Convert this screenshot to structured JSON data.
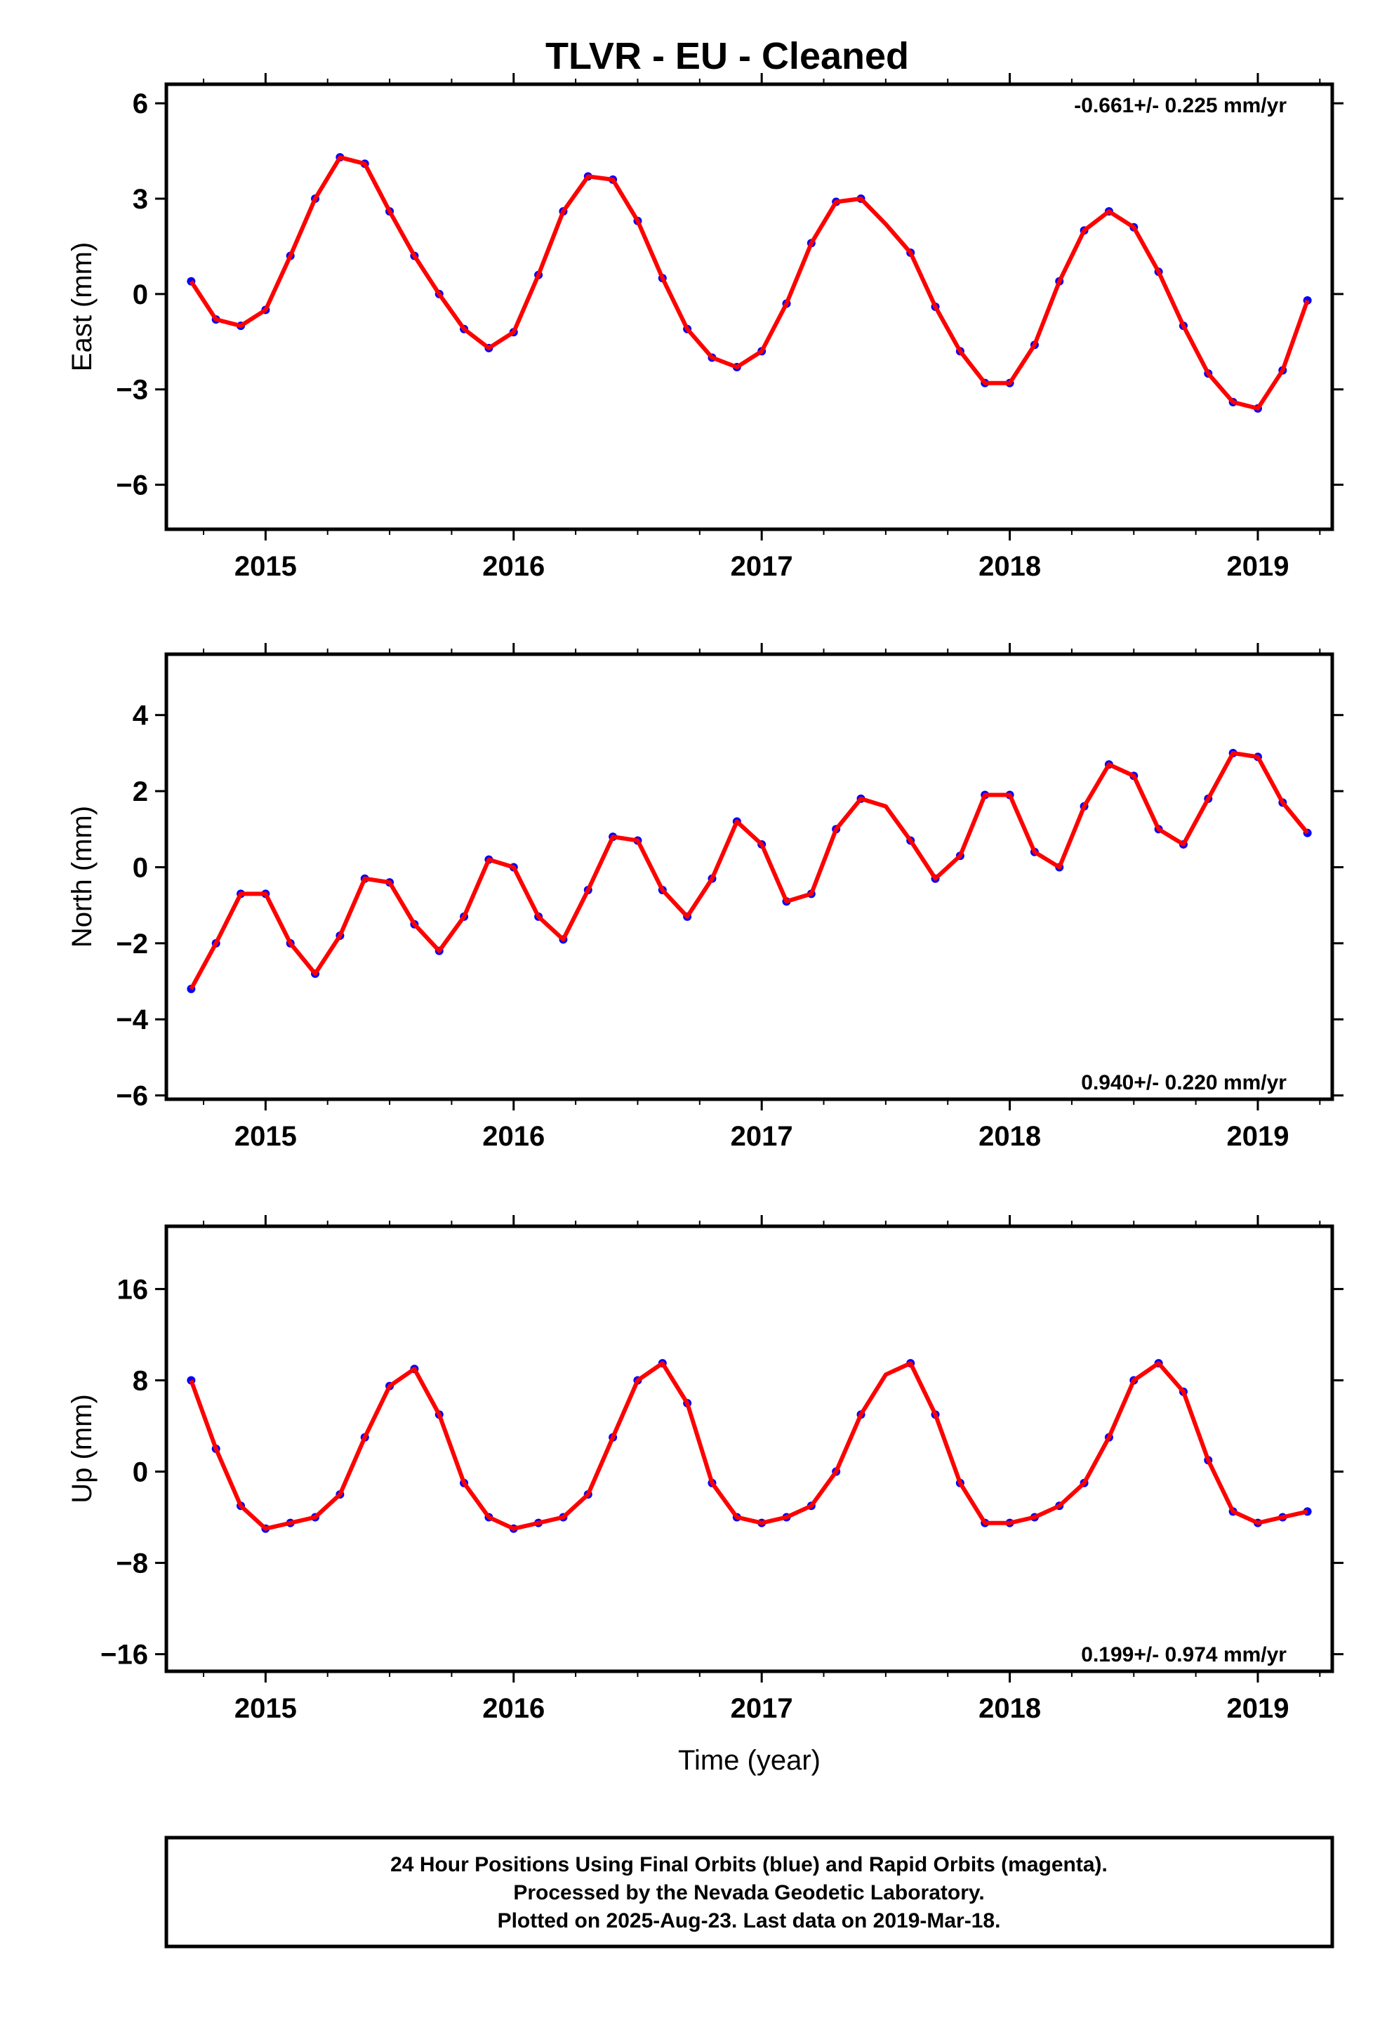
{
  "title": "TLVR  - EU - Cleaned",
  "colors": {
    "final_orbits": "#0000ff",
    "fit": "#ff0000",
    "frame": "#000000"
  },
  "footer": {
    "line1": "24 Hour Positions Using Final Orbits (blue) and Rapid Orbits (magenta).",
    "line2": "Processed by the Nevada Geodetic Laboratory.",
    "line3": "Plotted on 2025-Aug-23. Last data on 2019-Mar-18."
  },
  "chart_data": [
    {
      "type": "scatter",
      "component": "east",
      "ylabel": "East (mm)",
      "xlabel": "",
      "xlim": [
        2014.6,
        2019.3
      ],
      "ylim": [
        -7.4,
        6.6
      ],
      "xticks": [
        2015,
        2016,
        2017,
        2018,
        2019
      ],
      "yticks": [
        6,
        3,
        0,
        -3,
        -6
      ],
      "ytick_labels": [
        "6",
        "3",
        "0",
        "−3",
        "−6"
      ],
      "rate_text": "-0.661+/- 0.225 mm/yr",
      "rate_position": "top-right",
      "series": [
        {
          "style": "points",
          "color": "#0000ff",
          "x": [
            2014.7,
            2014.8,
            2014.9,
            2015.0,
            2015.1,
            2015.2,
            2015.3,
            2015.4,
            2015.5,
            2015.6,
            2015.7,
            2015.8,
            2015.9,
            2016.0,
            2016.1,
            2016.2,
            2016.3,
            2016.4,
            2016.5,
            2016.6,
            2016.7,
            2016.8,
            2016.9,
            2017.0,
            2017.1,
            2017.2,
            2017.3,
            2017.4,
            2017.6,
            2017.7,
            2017.8,
            2017.9,
            2018.0,
            2018.1,
            2018.2,
            2018.3,
            2018.4,
            2018.5,
            2018.6,
            2018.7,
            2018.8,
            2018.9,
            2019.0,
            2019.1,
            2019.2
          ],
          "y": [
            0.4,
            -0.8,
            -1.0,
            -0.5,
            1.2,
            3.0,
            4.3,
            4.1,
            2.6,
            1.2,
            0.0,
            -1.1,
            -1.7,
            -1.2,
            0.6,
            2.6,
            3.7,
            3.6,
            2.3,
            0.5,
            -1.1,
            -2.0,
            -2.3,
            -1.8,
            -0.3,
            1.6,
            2.9,
            3.0,
            1.3,
            -0.4,
            -1.8,
            -2.8,
            -2.8,
            -1.6,
            0.4,
            2.0,
            2.6,
            2.1,
            0.7,
            -1.0,
            -2.5,
            -3.4,
            -3.6,
            -2.4,
            -0.2
          ]
        },
        {
          "style": "line",
          "color": "#ff0000",
          "x": [
            2014.7,
            2014.8,
            2014.9,
            2015.0,
            2015.1,
            2015.2,
            2015.3,
            2015.4,
            2015.5,
            2015.6,
            2015.7,
            2015.8,
            2015.9,
            2016.0,
            2016.1,
            2016.2,
            2016.3,
            2016.4,
            2016.5,
            2016.6,
            2016.7,
            2016.8,
            2016.9,
            2017.0,
            2017.1,
            2017.2,
            2017.3,
            2017.4,
            2017.5,
            2017.6,
            2017.7,
            2017.8,
            2017.9,
            2018.0,
            2018.1,
            2018.2,
            2018.3,
            2018.4,
            2018.5,
            2018.6,
            2018.7,
            2018.8,
            2018.9,
            2019.0,
            2019.1,
            2019.2
          ],
          "y": [
            0.4,
            -0.8,
            -1.0,
            -0.5,
            1.2,
            3.0,
            4.3,
            4.1,
            2.6,
            1.2,
            0.0,
            -1.1,
            -1.7,
            -1.2,
            0.6,
            2.6,
            3.7,
            3.6,
            2.3,
            0.5,
            -1.1,
            -2.0,
            -2.3,
            -1.8,
            -0.3,
            1.6,
            2.9,
            3.0,
            2.2,
            1.3,
            -0.4,
            -1.8,
            -2.8,
            -2.8,
            -1.6,
            0.4,
            2.0,
            2.6,
            2.1,
            0.7,
            -1.0,
            -2.5,
            -3.4,
            -3.6,
            -2.4,
            -0.2
          ]
        }
      ]
    },
    {
      "type": "scatter",
      "component": "north",
      "ylabel": "North (mm)",
      "xlabel": "",
      "xlim": [
        2014.6,
        2019.3
      ],
      "ylim": [
        -6.1,
        5.6
      ],
      "xticks": [
        2015,
        2016,
        2017,
        2018,
        2019
      ],
      "yticks": [
        4,
        2,
        0,
        -2,
        -4,
        -6
      ],
      "ytick_labels": [
        "4",
        "2",
        "0",
        "−2",
        "−4",
        "−6"
      ],
      "rate_text": "0.940+/- 0.220 mm/yr",
      "rate_position": "bottom-right",
      "series": [
        {
          "style": "points",
          "color": "#0000ff",
          "x": [
            2014.7,
            2014.8,
            2014.9,
            2015.0,
            2015.1,
            2015.2,
            2015.3,
            2015.4,
            2015.5,
            2015.6,
            2015.7,
            2015.8,
            2015.9,
            2016.0,
            2016.1,
            2016.2,
            2016.3,
            2016.4,
            2016.5,
            2016.6,
            2016.7,
            2016.8,
            2016.9,
            2017.0,
            2017.1,
            2017.2,
            2017.3,
            2017.4,
            2017.6,
            2017.7,
            2017.8,
            2017.9,
            2018.0,
            2018.1,
            2018.2,
            2018.3,
            2018.4,
            2018.5,
            2018.6,
            2018.7,
            2018.8,
            2018.9,
            2019.0,
            2019.1,
            2019.2
          ],
          "y": [
            -3.2,
            -2.0,
            -0.7,
            -0.7,
            -2.0,
            -2.8,
            -1.8,
            -0.3,
            -0.4,
            -1.5,
            -2.2,
            -1.3,
            0.2,
            0.0,
            -1.3,
            -1.9,
            -0.6,
            0.8,
            0.7,
            -0.6,
            -1.3,
            -0.3,
            1.2,
            0.6,
            -0.9,
            -0.7,
            1.0,
            1.8,
            0.7,
            -0.3,
            0.3,
            1.9,
            1.9,
            0.4,
            0.0,
            1.6,
            2.7,
            2.4,
            1.0,
            0.6,
            1.8,
            3.0,
            2.9,
            1.7,
            0.9
          ]
        },
        {
          "style": "line",
          "color": "#ff0000",
          "x": [
            2014.7,
            2014.8,
            2014.9,
            2015.0,
            2015.1,
            2015.2,
            2015.3,
            2015.4,
            2015.5,
            2015.6,
            2015.7,
            2015.8,
            2015.9,
            2016.0,
            2016.1,
            2016.2,
            2016.3,
            2016.4,
            2016.5,
            2016.6,
            2016.7,
            2016.8,
            2016.9,
            2017.0,
            2017.1,
            2017.2,
            2017.3,
            2017.4,
            2017.5,
            2017.6,
            2017.7,
            2017.8,
            2017.9,
            2018.0,
            2018.1,
            2018.2,
            2018.3,
            2018.4,
            2018.5,
            2018.6,
            2018.7,
            2018.8,
            2018.9,
            2019.0,
            2019.1,
            2019.2
          ],
          "y": [
            -3.2,
            -2.0,
            -0.7,
            -0.7,
            -2.0,
            -2.8,
            -1.8,
            -0.3,
            -0.4,
            -1.5,
            -2.2,
            -1.3,
            0.2,
            0.0,
            -1.3,
            -1.9,
            -0.6,
            0.8,
            0.7,
            -0.6,
            -1.3,
            -0.3,
            1.2,
            0.6,
            -0.9,
            -0.7,
            1.0,
            1.8,
            1.6,
            0.7,
            -0.3,
            0.3,
            1.9,
            1.9,
            0.4,
            0.0,
            1.6,
            2.7,
            2.4,
            1.0,
            0.6,
            1.8,
            3.0,
            2.9,
            1.7,
            0.9
          ]
        }
      ]
    },
    {
      "type": "scatter",
      "component": "up",
      "ylabel": "Up (mm)",
      "xlabel": "Time (year)",
      "xlim": [
        2014.6,
        2019.3
      ],
      "ylim": [
        -17.5,
        21.5
      ],
      "xticks": [
        2015,
        2016,
        2017,
        2018,
        2019
      ],
      "yticks": [
        16,
        8,
        0,
        -8,
        -16
      ],
      "ytick_labels": [
        "16",
        "8",
        "0",
        "−8",
        "−16"
      ],
      "rate_text": "0.199+/- 0.974 mm/yr",
      "rate_position": "bottom-right",
      "series": [
        {
          "style": "points",
          "color": "#0000ff",
          "x": [
            2014.7,
            2014.8,
            2014.9,
            2015.0,
            2015.1,
            2015.2,
            2015.3,
            2015.4,
            2015.5,
            2015.6,
            2015.7,
            2015.8,
            2015.9,
            2016.0,
            2016.1,
            2016.2,
            2016.3,
            2016.4,
            2016.5,
            2016.6,
            2016.7,
            2016.8,
            2016.9,
            2017.0,
            2017.1,
            2017.2,
            2017.3,
            2017.4,
            2017.6,
            2017.7,
            2017.8,
            2017.9,
            2018.0,
            2018.1,
            2018.2,
            2018.3,
            2018.4,
            2018.5,
            2018.6,
            2018.7,
            2018.8,
            2018.9,
            2019.0,
            2019.1,
            2019.2
          ],
          "y": [
            8.0,
            2.0,
            -3.0,
            -5.0,
            -4.5,
            -4.0,
            -2.0,
            3.0,
            7.5,
            9.0,
            5.0,
            -1.0,
            -4.0,
            -5.0,
            -4.5,
            -4.0,
            -2.0,
            3.0,
            8.0,
            9.5,
            6.0,
            -1.0,
            -4.0,
            -4.5,
            -4.0,
            -3.0,
            0.0,
            5.0,
            9.5,
            5.0,
            -1.0,
            -4.5,
            -4.5,
            -4.0,
            -3.0,
            -1.0,
            3.0,
            8.0,
            9.5,
            7.0,
            1.0,
            -3.5,
            -4.5,
            -4.0,
            -3.5
          ]
        },
        {
          "style": "line",
          "color": "#ff0000",
          "x": [
            2014.7,
            2014.8,
            2014.9,
            2015.0,
            2015.1,
            2015.2,
            2015.3,
            2015.4,
            2015.5,
            2015.6,
            2015.7,
            2015.8,
            2015.9,
            2016.0,
            2016.1,
            2016.2,
            2016.3,
            2016.4,
            2016.5,
            2016.6,
            2016.7,
            2016.8,
            2016.9,
            2017.0,
            2017.1,
            2017.2,
            2017.3,
            2017.4,
            2017.5,
            2017.6,
            2017.7,
            2017.8,
            2017.9,
            2018.0,
            2018.1,
            2018.2,
            2018.3,
            2018.4,
            2018.5,
            2018.6,
            2018.7,
            2018.8,
            2018.9,
            2019.0,
            2019.1,
            2019.2
          ],
          "y": [
            8.0,
            2.0,
            -3.0,
            -5.0,
            -4.5,
            -4.0,
            -2.0,
            3.0,
            7.5,
            9.0,
            5.0,
            -1.0,
            -4.0,
            -5.0,
            -4.5,
            -4.0,
            -2.0,
            3.0,
            8.0,
            9.5,
            6.0,
            -1.0,
            -4.0,
            -4.5,
            -4.0,
            -3.0,
            0.0,
            5.0,
            8.5,
            9.5,
            5.0,
            -1.0,
            -4.5,
            -4.5,
            -4.0,
            -3.0,
            -1.0,
            3.0,
            8.0,
            9.5,
            7.0,
            1.0,
            -3.5,
            -4.5,
            -4.0,
            -3.5
          ]
        }
      ]
    }
  ]
}
